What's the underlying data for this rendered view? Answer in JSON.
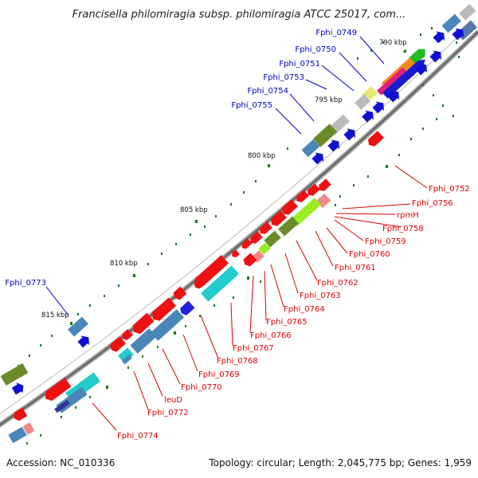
{
  "title": "Francisella philomiragia subsp. philomiragia ATCC 25017, com...",
  "footer": {
    "accession": "Accession: NC_010336",
    "summary": "Topology: circular; Length: 2,045,775 bp; Genes: 1,959"
  },
  "colors": {
    "forward_label": "#0000cc",
    "reverse_label": "#dd0000",
    "backbone": "#777777",
    "tick": "#1a7a1a"
  },
  "ticks": [
    "790 kbp",
    "795 kbp",
    "800 kbp",
    "805 kbp",
    "810 kbp",
    "815 kbp"
  ],
  "forward_labels": [
    "Fphi_0749",
    "Fphi_0750",
    "Fphi_0751",
    "Fphi_0753",
    "Fphi_0754",
    "Fphi_0755",
    "Fphi_0773"
  ],
  "reverse_labels": [
    "Fphi_0752",
    "Fphi_0756",
    "rpmH",
    "Fphi_0758",
    "Fphi_0759",
    "Fphi_0760",
    "Fphi_0761",
    "Fphi_0762",
    "Fphi_0763",
    "Fphi_0764",
    "Fphi_0765",
    "Fphi_0766",
    "Fphi_0767",
    "Fphi_0768",
    "Fphi_0769",
    "Fphi_0770",
    "leuD",
    "Fphi_0772",
    "Fphi_0774"
  ]
}
